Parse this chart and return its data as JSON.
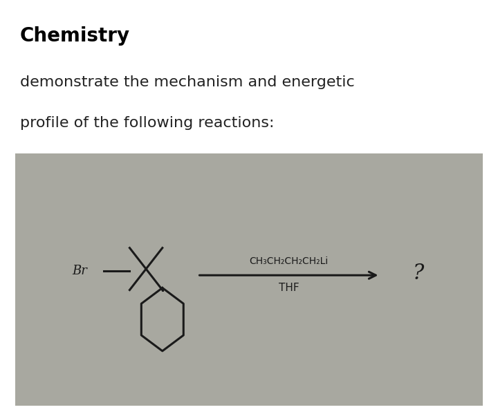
{
  "title": "Chemistry",
  "subtitle_line1": "demonstrate the mechanism and energetic",
  "subtitle_line2": "profile of the following reactions:",
  "title_fontsize": 20,
  "subtitle_fontsize": 16,
  "title_bold": true,
  "bg_color_top": "#ffffff",
  "bg_color_image": "#a8a8a0",
  "reagent_above": "CH₃CH₂CH₂CH₂Li",
  "reagent_below": "THF",
  "question_mark": "?",
  "br_label": "Br"
}
